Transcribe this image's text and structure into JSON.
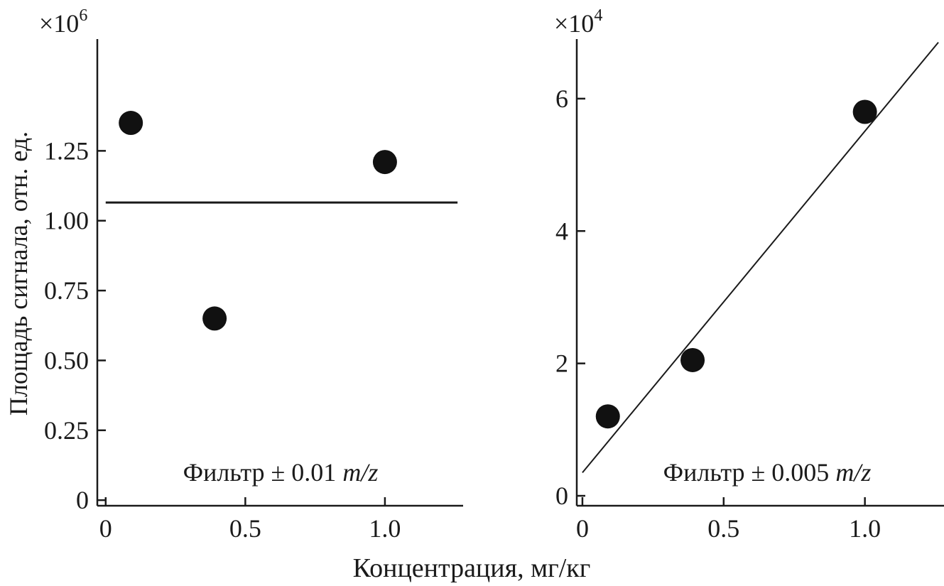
{
  "chart_data": [
    {
      "type": "scatter",
      "multiplier_base": "×10",
      "multiplier_exp": "6",
      "xlim": [
        -0.03,
        1.28
      ],
      "ylim": [
        -0.02,
        1.65
      ],
      "xticks": [
        0,
        0.5,
        1.0
      ],
      "xtick_labels": [
        "0",
        "0.5",
        "1.0"
      ],
      "yticks": [
        0,
        0.25,
        0.5,
        0.75,
        1.0,
        1.25
      ],
      "ytick_labels": [
        "0",
        "0.25",
        "0.50",
        "0.75",
        "1.00",
        "1.25"
      ],
      "points": [
        {
          "x": 0.09,
          "y": 1.35
        },
        {
          "x": 0.39,
          "y": 0.65
        },
        {
          "x": 1.0,
          "y": 1.21
        }
      ],
      "fit_line": {
        "x0": 0.0,
        "y0": 1.065,
        "x1": 1.26,
        "y1": 1.065
      },
      "annotation_prefix": "Фильтр ± 0.01 ",
      "annotation_italic": "m/z"
    },
    {
      "type": "scatter",
      "multiplier_base": "×10",
      "multiplier_exp": "4",
      "xlim": [
        -0.02,
        1.28
      ],
      "ylim": [
        -0.15,
        6.9
      ],
      "xticks": [
        0,
        0.5,
        1.0
      ],
      "xtick_labels": [
        "0",
        "0.5",
        "1.0"
      ],
      "yticks": [
        0,
        2,
        4,
        6
      ],
      "ytick_labels": [
        "0",
        "2",
        "4",
        "6"
      ],
      "points": [
        {
          "x": 0.09,
          "y": 1.2
        },
        {
          "x": 0.39,
          "y": 2.05
        },
        {
          "x": 1.0,
          "y": 5.8
        }
      ],
      "fit_line": {
        "x0": 0.0,
        "y0": 0.35,
        "x1": 1.26,
        "y1": 6.85
      },
      "annotation_prefix": "Фильтр ± 0.005 ",
      "annotation_italic": "m/z"
    }
  ],
  "shared": {
    "ylabel": "Площадь сигнала, отн. ед.",
    "xlabel": "Концентрация, мг/кг"
  }
}
